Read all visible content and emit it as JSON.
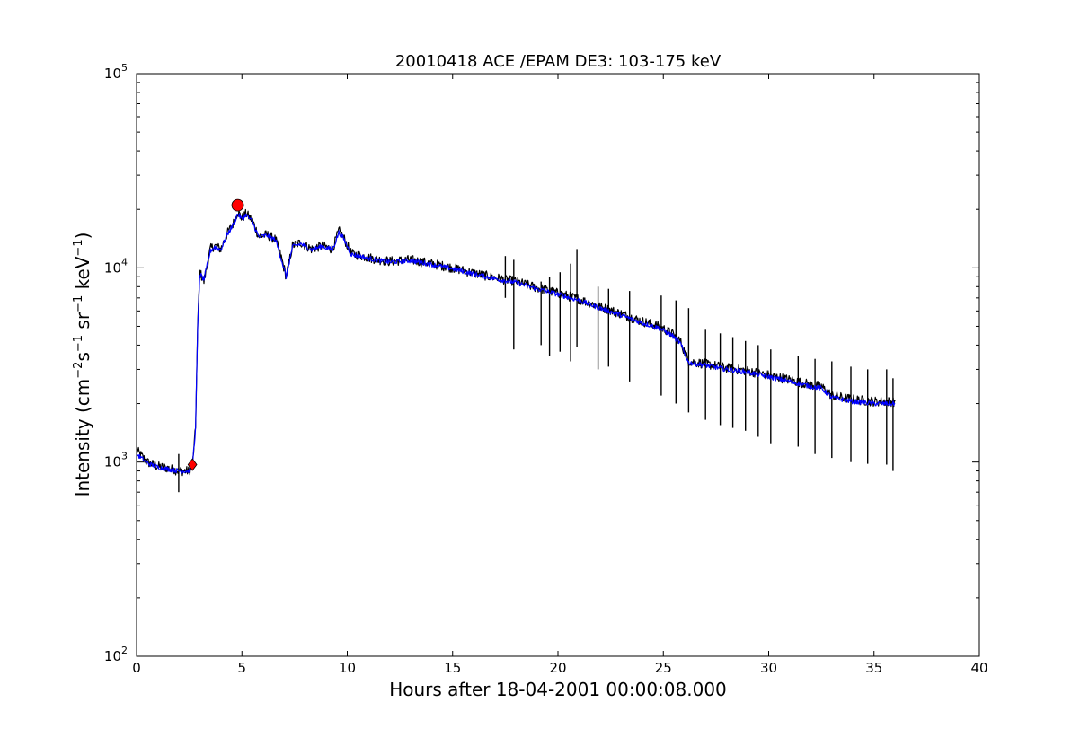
{
  "chart_data": {
    "type": "line",
    "title": "20010418 ACE /EPAM DE3: 103-175 keV",
    "xlabel": "Hours after 18-04-2001 00:00:08.000",
    "ylabel_parts": {
      "pre": "Intensity (cm",
      "sup1": "−2",
      "mid1": "s",
      "sup2": "−1",
      "mid2": " sr",
      "sup3": "−1",
      "mid3": " keV",
      "sup4": "−1",
      "post": ")"
    },
    "xlim": [
      0,
      40
    ],
    "ylim": [
      100,
      100000
    ],
    "yscale": "log",
    "grid": false,
    "x_ticks": [
      0,
      5,
      10,
      15,
      20,
      25,
      30,
      35,
      40
    ],
    "x_tick_labels": [
      "0",
      "5",
      "10",
      "15",
      "20",
      "25",
      "30",
      "35",
      "40"
    ],
    "y_ticks": [
      100,
      1000,
      10000,
      100000
    ],
    "y_tick_labels": [
      {
        "base": "10",
        "exp": "2"
      },
      {
        "base": "10",
        "exp": "3"
      },
      {
        "base": "10",
        "exp": "4"
      },
      {
        "base": "10",
        "exp": "5"
      }
    ],
    "series": [
      {
        "style": "raw",
        "color": "#000000",
        "x": [
          0,
          0.5,
          1,
          1.5,
          2,
          2.5,
          2.65,
          2.8,
          2.9,
          3.0,
          3.2,
          3.5,
          3.7,
          4.0,
          4.3,
          4.6,
          4.8,
          5.0,
          5.2,
          5.5,
          5.8,
          6.2,
          6.6,
          6.9,
          7.1,
          7.4,
          7.8,
          8.3,
          8.8,
          9.3,
          9.6,
          9.8,
          10.2,
          10.6,
          11,
          11.5,
          12,
          13,
          14,
          15,
          16,
          17,
          18,
          19,
          20,
          21,
          22,
          23,
          24,
          24.8,
          25.4,
          25.8,
          26.2,
          27,
          28,
          29,
          30,
          31,
          32,
          32.5,
          33,
          34,
          35,
          36
        ],
        "y": [
          1150,
          1000,
          950,
          930,
          900,
          900,
          950,
          1500,
          5000,
          9500,
          8500,
          12500,
          13000,
          12500,
          15000,
          17000,
          19500,
          18000,
          19000,
          17500,
          14500,
          14800,
          14000,
          11000,
          9000,
          13000,
          13500,
          12500,
          13000,
          12500,
          15500,
          14500,
          11800,
          11600,
          11300,
          11000,
          10800,
          11000,
          10500,
          10000,
          9400,
          8900,
          8500,
          7900,
          7400,
          6900,
          6300,
          5800,
          5300,
          5000,
          4600,
          4200,
          3300,
          3200,
          3050,
          2950,
          2800,
          2650,
          2500,
          2450,
          2200,
          2100,
          2050,
          2050
        ],
        "spikes": [
          {
            "x": 2.0,
            "lo": 700,
            "hi": 1100
          },
          {
            "x": 17.5,
            "lo": 7000,
            "hi": 11500
          },
          {
            "x": 17.9,
            "lo": 3800,
            "hi": 11000
          },
          {
            "x": 19.2,
            "lo": 4000,
            "hi": 8500
          },
          {
            "x": 19.6,
            "lo": 3500,
            "hi": 9000
          },
          {
            "x": 20.1,
            "lo": 3700,
            "hi": 9500
          },
          {
            "x": 20.6,
            "lo": 3300,
            "hi": 10500
          },
          {
            "x": 20.9,
            "lo": 3900,
            "hi": 12500
          },
          {
            "x": 21.9,
            "lo": 3000,
            "hi": 8000
          },
          {
            "x": 22.4,
            "lo": 3100,
            "hi": 7800
          },
          {
            "x": 23.4,
            "lo": 2600,
            "hi": 7600
          },
          {
            "x": 24.9,
            "lo": 2200,
            "hi": 7200
          },
          {
            "x": 25.6,
            "lo": 2000,
            "hi": 6800
          },
          {
            "x": 26.2,
            "lo": 1800,
            "hi": 6200
          },
          {
            "x": 27.0,
            "lo": 1650,
            "hi": 4800
          },
          {
            "x": 27.7,
            "lo": 1550,
            "hi": 4600
          },
          {
            "x": 28.3,
            "lo": 1500,
            "hi": 4400
          },
          {
            "x": 28.9,
            "lo": 1450,
            "hi": 4200
          },
          {
            "x": 29.5,
            "lo": 1350,
            "hi": 4000
          },
          {
            "x": 30.1,
            "lo": 1250,
            "hi": 3800
          },
          {
            "x": 31.4,
            "lo": 1200,
            "hi": 3500
          },
          {
            "x": 32.2,
            "lo": 1100,
            "hi": 3400
          },
          {
            "x": 33.0,
            "lo": 1050,
            "hi": 3300
          },
          {
            "x": 33.9,
            "lo": 1000,
            "hi": 3100
          },
          {
            "x": 34.7,
            "lo": 980,
            "hi": 3000
          },
          {
            "x": 35.6,
            "lo": 970,
            "hi": 3000
          },
          {
            "x": 35.9,
            "lo": 900,
            "hi": 2700
          }
        ]
      },
      {
        "style": "smoothed",
        "color": "#0000ff",
        "x": [
          0,
          0.5,
          1,
          1.5,
          2,
          2.5,
          2.65,
          2.8,
          2.9,
          3.0,
          3.2,
          3.5,
          3.7,
          4.0,
          4.3,
          4.6,
          4.8,
          5.0,
          5.2,
          5.5,
          5.8,
          6.2,
          6.6,
          6.9,
          7.1,
          7.4,
          7.8,
          8.3,
          8.8,
          9.3,
          9.6,
          9.8,
          10.2,
          10.6,
          11,
          11.5,
          12,
          13,
          14,
          15,
          16,
          17,
          18,
          19,
          20,
          21,
          22,
          23,
          24,
          24.8,
          25.4,
          25.8,
          26.2,
          27,
          28,
          29,
          30,
          31,
          32,
          32.5,
          33,
          34,
          35,
          36
        ],
        "y": [
          1100,
          990,
          940,
          920,
          900,
          900,
          950,
          1500,
          4800,
          9300,
          8700,
          12200,
          12800,
          12400,
          14800,
          16800,
          19000,
          17800,
          18800,
          17200,
          14400,
          14700,
          13900,
          10800,
          9000,
          12800,
          13300,
          12400,
          12900,
          12400,
          15200,
          14300,
          11700,
          11500,
          11200,
          10900,
          10700,
          10900,
          10400,
          9900,
          9300,
          8800,
          8400,
          7800,
          7300,
          6800,
          6200,
          5700,
          5200,
          4900,
          4500,
          4100,
          3250,
          3150,
          3000,
          2900,
          2750,
          2600,
          2450,
          2400,
          2150,
          2050,
          2000,
          2000
        ]
      }
    ],
    "markers": [
      {
        "shape": "diamond",
        "color": "#ff0000",
        "x": 2.65,
        "y": 970
      },
      {
        "shape": "circle",
        "color": "#ff0000",
        "x": 4.8,
        "y": 21000
      }
    ]
  }
}
